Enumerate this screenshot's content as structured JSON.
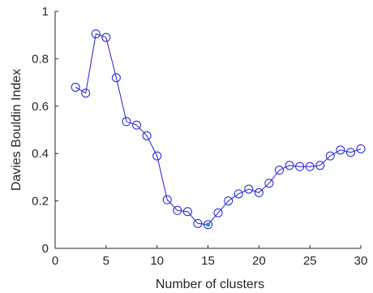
{
  "chart_data": {
    "type": "line",
    "title": "",
    "xlabel": "Number of clusters",
    "ylabel": "Davies Bouldin Index",
    "xlim": [
      0,
      30
    ],
    "ylim": [
      0,
      1
    ],
    "x_ticks": [
      0,
      5,
      10,
      15,
      20,
      25,
      30
    ],
    "y_ticks": [
      0,
      0.2,
      0.4,
      0.6,
      0.8,
      1
    ],
    "x_tick_labels": [
      "0",
      "5",
      "10",
      "15",
      "20",
      "25",
      "30"
    ],
    "y_tick_labels": [
      "0",
      "0.2",
      "0.4",
      "0.6",
      "0.8",
      "1"
    ],
    "grid": false,
    "series": [
      {
        "color": "#1f1fe0",
        "marker": "open-circle",
        "x": [
          2,
          3,
          4,
          5,
          6,
          7,
          8,
          9,
          10,
          11,
          12,
          13,
          14,
          15,
          16,
          17,
          18,
          19,
          20,
          21,
          22,
          23,
          24,
          25,
          26,
          27,
          28,
          29,
          30
        ],
        "y": [
          0.68,
          0.655,
          0.905,
          0.89,
          0.72,
          0.535,
          0.52,
          0.475,
          0.39,
          0.205,
          0.16,
          0.155,
          0.105,
          0.1,
          0.15,
          0.2,
          0.23,
          0.25,
          0.235,
          0.275,
          0.33,
          0.35,
          0.345,
          0.345,
          0.35,
          0.39,
          0.415,
          0.405,
          0.42
        ]
      }
    ],
    "highlight": {
      "x": 15,
      "y": 0.1,
      "color": "#1fa0a0"
    }
  }
}
